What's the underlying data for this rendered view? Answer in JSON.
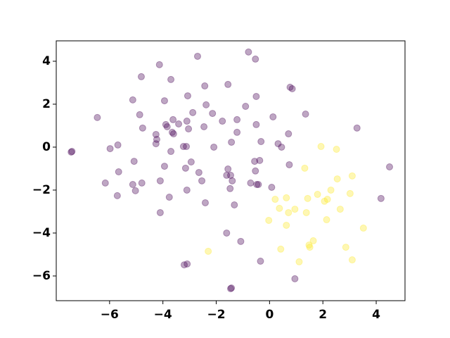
{
  "chart_data": {
    "type": "scatter",
    "xlim": [
      -8.0,
      5.08
    ],
    "ylim": [
      -7.15,
      4.95
    ],
    "xticks": [
      {
        "value": -6,
        "label": "−6"
      },
      {
        "value": -4,
        "label": "−4"
      },
      {
        "value": -2,
        "label": "−2"
      },
      0,
      2,
      4
    ],
    "yticks": [
      {
        "value": -6,
        "label": "−6"
      },
      {
        "value": -4,
        "label": "−4"
      },
      {
        "value": -2,
        "label": "−2"
      },
      0,
      2,
      4
    ],
    "alpha": 0.35,
    "series": [
      {
        "color": "#440154",
        "x": [
          -7.41,
          -7.44,
          -6.46,
          -5.98,
          -6.16,
          -5.69,
          -5.66,
          -5.71,
          -5.13,
          -5.08,
          -5.13,
          -5.03,
          -4.87,
          -4.81,
          -4.76,
          -4.79,
          -4.13,
          -3.94,
          -4.26,
          -4.23,
          -4.26,
          -4.1,
          -3.94,
          -3.89,
          -3.84,
          -3.7,
          -3.62,
          -3.6,
          -3.65,
          -3.7,
          -3.76,
          -4.1,
          -3.41,
          -3.23,
          -3.12,
          -3.07,
          -3.1,
          -3.04,
          -3.15,
          -2.94,
          -3.1,
          -3.2,
          -3.09,
          -2.88,
          -2.7,
          -2.43,
          -2.38,
          -2.46,
          -2.65,
          -2.54,
          -2.41,
          -2.14,
          -2.09,
          -1.77,
          -1.56,
          -1.56,
          -1.61,
          -1.46,
          -1.43,
          -1.4,
          -1.48,
          -1.32,
          -1.61,
          -1.22,
          -1.22,
          -1.08,
          -1.43,
          -1.46,
          -0.9,
          -0.79,
          -0.71,
          -0.53,
          -0.5,
          -0.5,
          -0.53,
          -0.56,
          -0.48,
          -0.42,
          -0.32,
          -0.37,
          -0.34,
          0.08,
          0.13,
          0.32,
          0.45,
          0.71,
          0.74,
          0.77,
          0.85,
          0.95,
          1.35,
          3.28,
          4.5,
          4.18
        ],
        "y": [
          -0.2,
          -0.23,
          1.38,
          -0.07,
          -1.67,
          0.1,
          -1.15,
          -2.26,
          2.2,
          -0.66,
          -1.74,
          -2.03,
          1.51,
          3.28,
          0.89,
          -1.67,
          3.84,
          2.16,
          0.59,
          0.36,
          0.16,
          -3.05,
          -0.89,
          1.05,
          0.95,
          3.15,
          1.28,
          0.62,
          0.69,
          -0.2,
          -2.33,
          -1.57,
          1.08,
          0.03,
          0.03,
          2.39,
          1.21,
          0.85,
          -0.98,
          -0.69,
          -2.0,
          -5.48,
          -5.44,
          1.61,
          4.23,
          2.85,
          1.97,
          0.95,
          -1.18,
          -1.57,
          -2.59,
          1.57,
          0.0,
          1.21,
          2.92,
          -1.02,
          -1.31,
          -1.31,
          0.23,
          -1.57,
          -1.93,
          -2.69,
          -4.0,
          0.69,
          1.28,
          -4.39,
          -6.56,
          -6.59,
          1.9,
          4.43,
          -1.67,
          4.1,
          2.36,
          1.05,
          -1.11,
          -0.66,
          -1.74,
          -1.74,
          0.26,
          -0.62,
          -5.31,
          -1.87,
          1.41,
          0.16,
          0.0,
          0.62,
          -0.82,
          2.79,
          2.72,
          -6.13,
          1.54,
          0.89,
          -0.92,
          -2.39
        ]
      },
      {
        "color": "#fde725",
        "x": [
          -2.3,
          -0.03,
          0.21,
          0.37,
          0.42,
          0.63,
          0.63,
          0.71,
          0.95,
          1.11,
          1.32,
          1.38,
          1.43,
          1.48,
          1.51,
          1.64,
          1.8,
          1.93,
          2.06,
          2.17,
          2.14,
          2.3,
          2.51,
          2.54,
          2.65,
          2.86,
          3.02,
          3.1,
          3.1,
          3.52
        ],
        "y": [
          -4.85,
          -3.41,
          -2.43,
          -2.85,
          -4.75,
          -2.36,
          -3.64,
          -3.05,
          -2.89,
          -5.34,
          -0.98,
          -3.05,
          -2.39,
          -4.56,
          -4.66,
          -4.36,
          -2.2,
          0.03,
          -2.52,
          -2.43,
          -3.38,
          -2.0,
          -0.1,
          -1.48,
          -2.89,
          -4.66,
          -2.16,
          -1.34,
          -5.25,
          -3.77
        ]
      }
    ]
  }
}
